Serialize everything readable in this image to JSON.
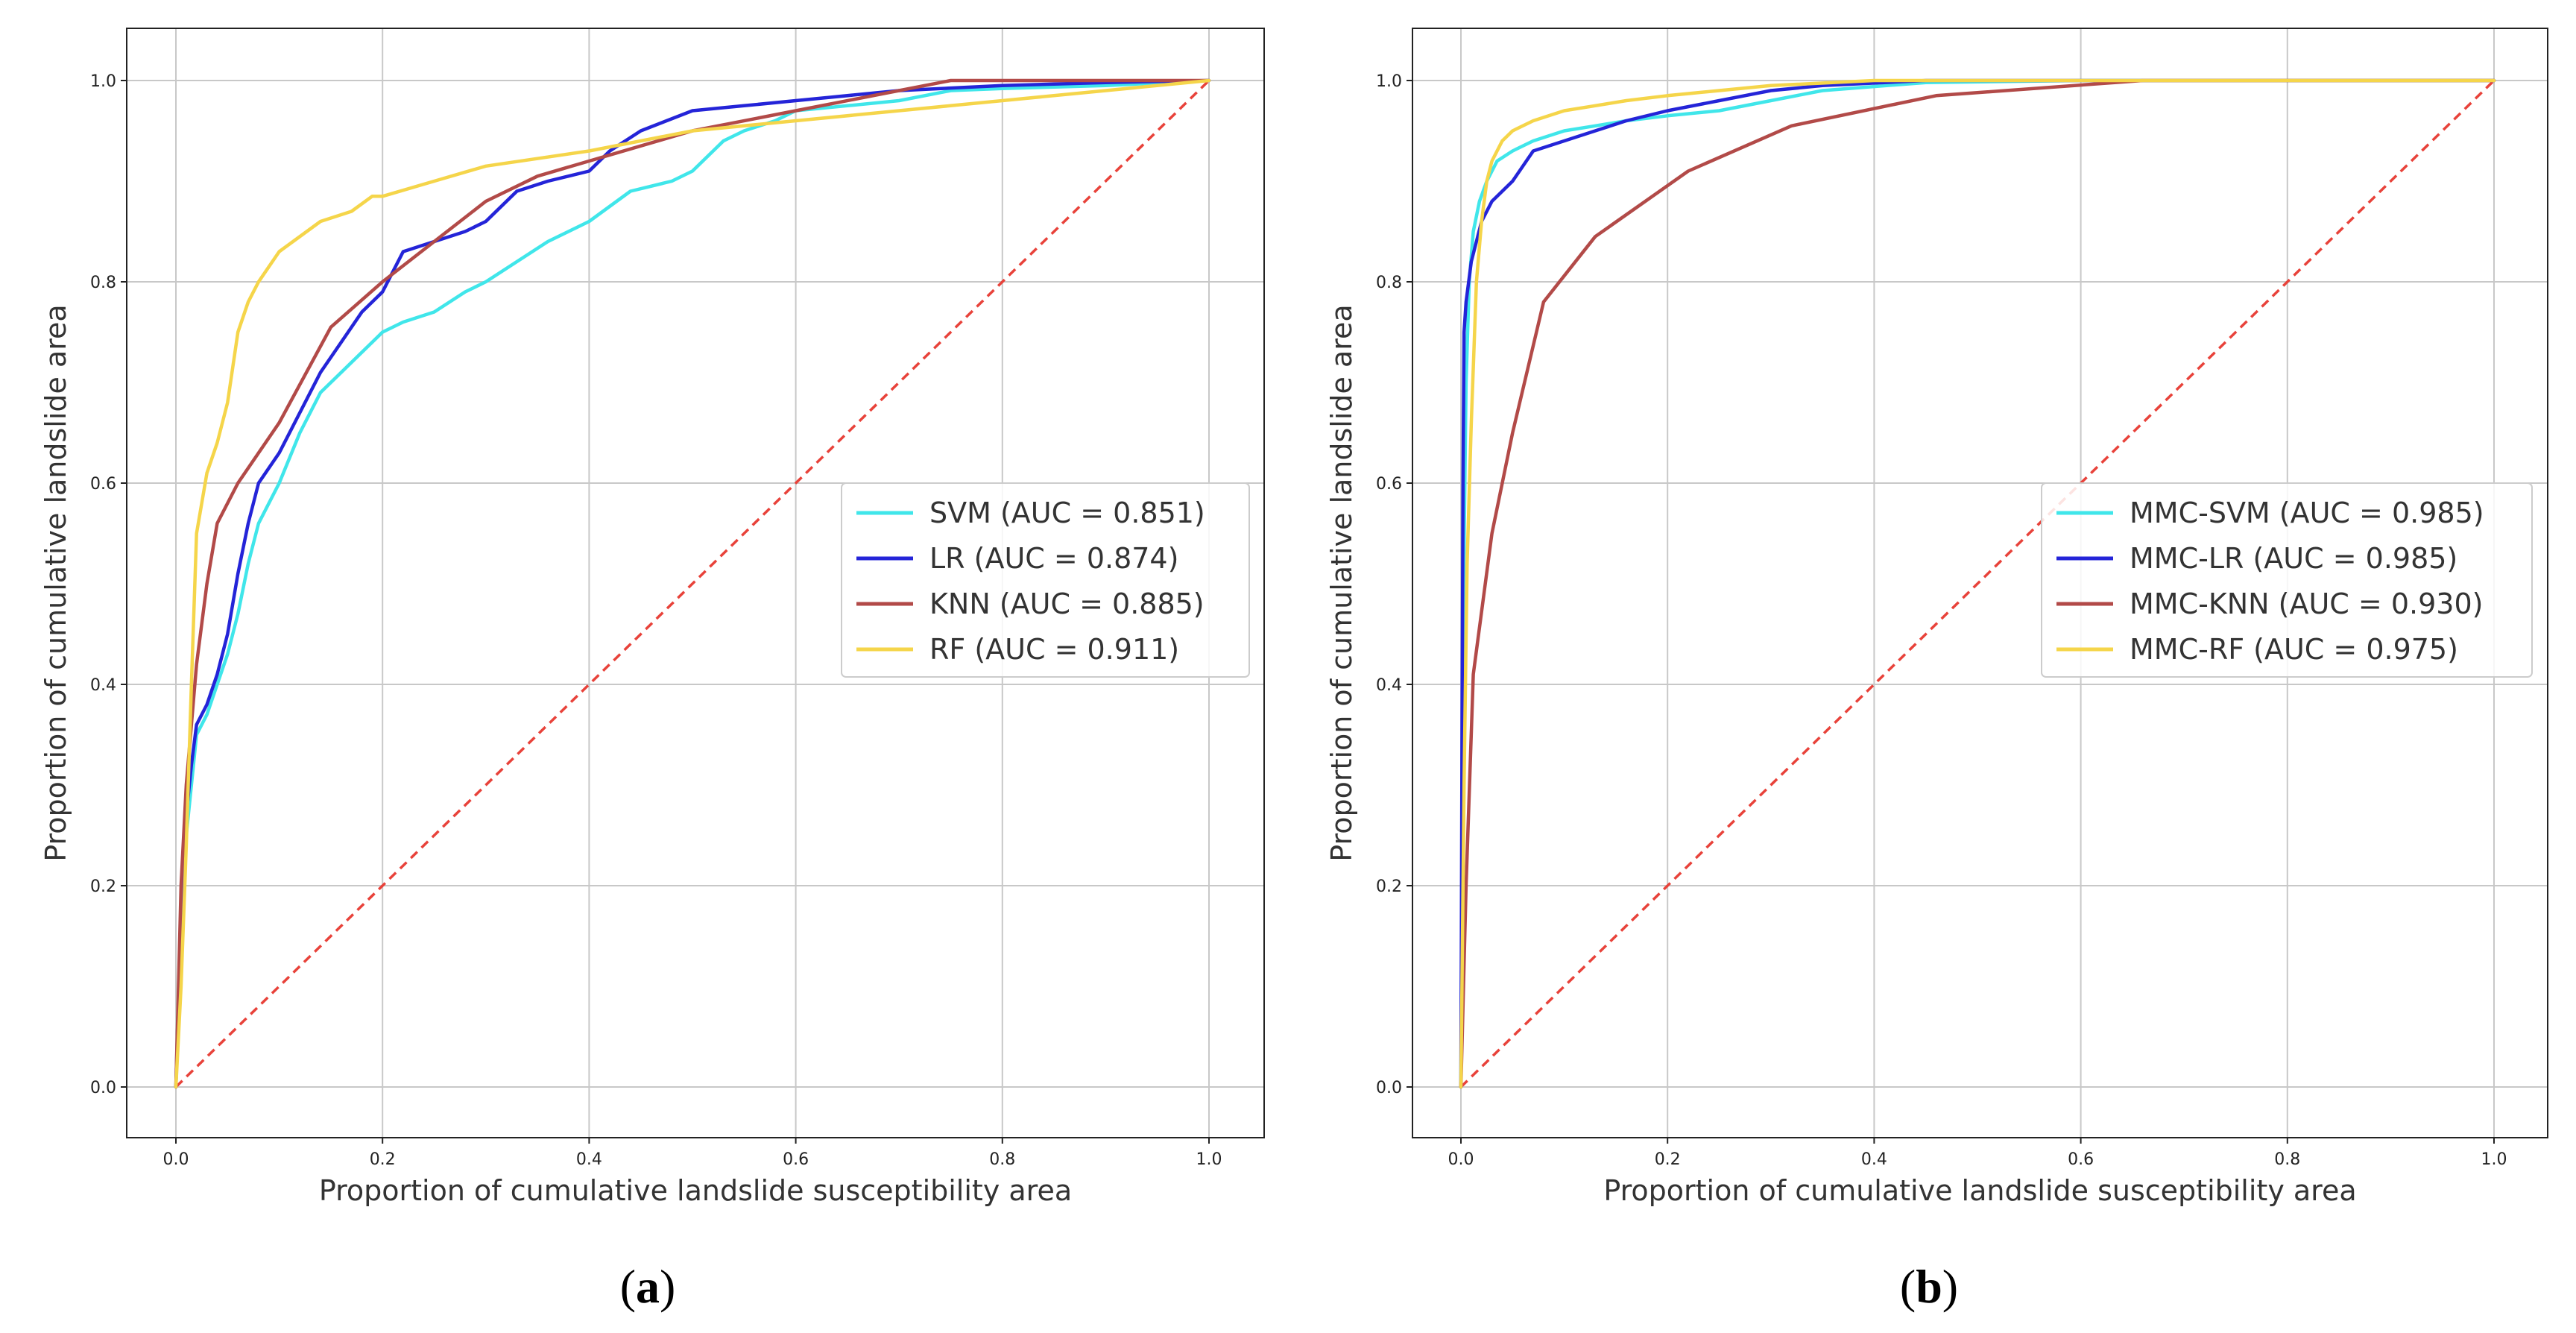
{
  "captions": [
    {
      "open": "(",
      "letter": "a",
      "close": ")"
    },
    {
      "open": "(",
      "letter": "b",
      "close": ")"
    }
  ],
  "chart_data": [
    {
      "type": "line",
      "xlabel": "Proportion of cumulative landslide susceptibility area",
      "ylabel": "Proportion of cumulative landslide area",
      "xlim": [
        0,
        1
      ],
      "ylim": [
        0,
        1
      ],
      "xticks": [
        "0.0",
        "0.2",
        "0.4",
        "0.6",
        "0.8",
        "1.0"
      ],
      "yticks": [
        "0.0",
        "0.2",
        "0.4",
        "0.6",
        "0.8",
        "1.0"
      ],
      "grid": true,
      "legend_position": "center-right",
      "diagonal": {
        "color": "#e8423a",
        "style": "dashed"
      },
      "series": [
        {
          "name": "SVM (AUC = 0.851)",
          "color": "#40e6ea",
          "x": [
            0,
            0.005,
            0.01,
            0.015,
            0.02,
            0.03,
            0.04,
            0.05,
            0.06,
            0.07,
            0.08,
            0.1,
            0.12,
            0.14,
            0.16,
            0.18,
            0.2,
            0.22,
            0.25,
            0.28,
            0.3,
            0.33,
            0.36,
            0.4,
            0.44,
            0.48,
            0.5,
            0.53,
            0.55,
            0.58,
            0.6,
            0.65,
            0.7,
            0.75,
            0.8,
            0.9,
            1.0
          ],
          "y": [
            0,
            0.15,
            0.25,
            0.3,
            0.35,
            0.37,
            0.4,
            0.43,
            0.47,
            0.52,
            0.56,
            0.6,
            0.65,
            0.69,
            0.71,
            0.73,
            0.75,
            0.76,
            0.77,
            0.79,
            0.8,
            0.82,
            0.84,
            0.86,
            0.89,
            0.9,
            0.91,
            0.94,
            0.95,
            0.96,
            0.97,
            0.975,
            0.98,
            0.99,
            0.992,
            0.995,
            1.0
          ]
        },
        {
          "name": "LR (AUC = 0.874)",
          "color": "#2424d8",
          "x": [
            0,
            0.005,
            0.01,
            0.015,
            0.02,
            0.03,
            0.04,
            0.05,
            0.06,
            0.07,
            0.08,
            0.1,
            0.12,
            0.14,
            0.16,
            0.18,
            0.2,
            0.22,
            0.25,
            0.28,
            0.3,
            0.33,
            0.36,
            0.4,
            0.42,
            0.45,
            0.5,
            0.55,
            0.6,
            0.7,
            0.8,
            0.9,
            1.0
          ],
          "y": [
            0,
            0.18,
            0.27,
            0.32,
            0.36,
            0.38,
            0.41,
            0.45,
            0.51,
            0.56,
            0.6,
            0.63,
            0.67,
            0.71,
            0.74,
            0.77,
            0.79,
            0.83,
            0.84,
            0.85,
            0.86,
            0.89,
            0.9,
            0.91,
            0.93,
            0.95,
            0.97,
            0.975,
            0.98,
            0.99,
            0.995,
            0.998,
            1.0
          ]
        },
        {
          "name": "KNN (AUC = 0.885)",
          "color": "#b24a48",
          "x": [
            0,
            0.005,
            0.01,
            0.02,
            0.03,
            0.04,
            0.06,
            0.08,
            0.1,
            0.15,
            0.2,
            0.25,
            0.3,
            0.35,
            0.4,
            0.5,
            0.6,
            0.7,
            0.75,
            0.85,
            1.0
          ],
          "y": [
            0,
            0.2,
            0.3,
            0.42,
            0.5,
            0.56,
            0.6,
            0.63,
            0.66,
            0.755,
            0.8,
            0.84,
            0.88,
            0.905,
            0.92,
            0.95,
            0.97,
            0.99,
            1.0,
            1.0,
            1.0
          ]
        },
        {
          "name": "RF (AUC = 0.911)",
          "color": "#f5d54a",
          "x": [
            0,
            0.005,
            0.01,
            0.015,
            0.02,
            0.03,
            0.04,
            0.05,
            0.06,
            0.07,
            0.08,
            0.1,
            0.14,
            0.17,
            0.19,
            0.2,
            0.25,
            0.3,
            0.4,
            0.5,
            0.6,
            0.7,
            0.8,
            0.9,
            1.0
          ],
          "y": [
            0,
            0.1,
            0.24,
            0.4,
            0.55,
            0.61,
            0.64,
            0.68,
            0.75,
            0.78,
            0.8,
            0.83,
            0.86,
            0.87,
            0.885,
            0.885,
            0.9,
            0.915,
            0.93,
            0.95,
            0.96,
            0.97,
            0.98,
            0.99,
            1.0
          ]
        }
      ]
    },
    {
      "type": "line",
      "xlabel": "Proportion of cumulative landslide susceptibility area",
      "ylabel": "Proportion of cumulative landslide area",
      "xlim": [
        0,
        1
      ],
      "ylim": [
        0,
        1
      ],
      "xticks": [
        "0.0",
        "0.2",
        "0.4",
        "0.6",
        "0.8",
        "1.0"
      ],
      "yticks": [
        "0.0",
        "0.2",
        "0.4",
        "0.6",
        "0.8",
        "1.0"
      ],
      "grid": true,
      "legend_position": "center-right",
      "diagonal": {
        "color": "#e8423a",
        "style": "dashed"
      },
      "series": [
        {
          "name": "MMC-SVM (AUC = 0.985)",
          "color": "#40e6ea",
          "x": [
            0,
            0.002,
            0.005,
            0.008,
            0.012,
            0.018,
            0.025,
            0.035,
            0.05,
            0.07,
            0.1,
            0.13,
            0.16,
            0.2,
            0.25,
            0.3,
            0.35,
            0.45,
            0.6,
            0.8,
            1.0
          ],
          "y": [
            0,
            0.45,
            0.7,
            0.8,
            0.85,
            0.88,
            0.9,
            0.92,
            0.93,
            0.94,
            0.95,
            0.955,
            0.96,
            0.965,
            0.97,
            0.98,
            0.99,
            0.998,
            1.0,
            1.0,
            1.0
          ]
        },
        {
          "name": "MMC-LR (AUC = 0.985)",
          "color": "#2424d8",
          "x": [
            0,
            0.001,
            0.002,
            0.003,
            0.005,
            0.01,
            0.02,
            0.03,
            0.05,
            0.07,
            0.1,
            0.13,
            0.16,
            0.2,
            0.25,
            0.3,
            0.35,
            0.45,
            0.6,
            0.8,
            1.0
          ],
          "y": [
            0,
            0.33,
            0.6,
            0.75,
            0.78,
            0.82,
            0.86,
            0.88,
            0.9,
            0.93,
            0.94,
            0.95,
            0.96,
            0.97,
            0.98,
            0.99,
            0.995,
            1.0,
            1.0,
            1.0,
            1.0
          ]
        },
        {
          "name": "MMC-KNN (AUC = 0.930)",
          "color": "#b24a48",
          "x": [
            0,
            0.005,
            0.012,
            0.03,
            0.05,
            0.08,
            0.13,
            0.22,
            0.32,
            0.46,
            0.66,
            1.0
          ],
          "y": [
            0,
            0.2,
            0.41,
            0.55,
            0.65,
            0.78,
            0.845,
            0.91,
            0.955,
            0.985,
            1.0,
            1.0
          ]
        },
        {
          "name": "MMC-RF (AUC = 0.975)",
          "color": "#f5d54a",
          "x": [
            0,
            0.003,
            0.006,
            0.01,
            0.015,
            0.02,
            0.025,
            0.03,
            0.04,
            0.05,
            0.07,
            0.1,
            0.13,
            0.16,
            0.2,
            0.25,
            0.3,
            0.4,
            0.5,
            0.6,
            0.8,
            1.0
          ],
          "y": [
            0,
            0.3,
            0.52,
            0.66,
            0.8,
            0.86,
            0.9,
            0.92,
            0.94,
            0.95,
            0.96,
            0.97,
            0.975,
            0.98,
            0.985,
            0.99,
            0.995,
            1.0,
            1.0,
            1.0,
            1.0,
            1.0
          ]
        }
      ]
    }
  ]
}
